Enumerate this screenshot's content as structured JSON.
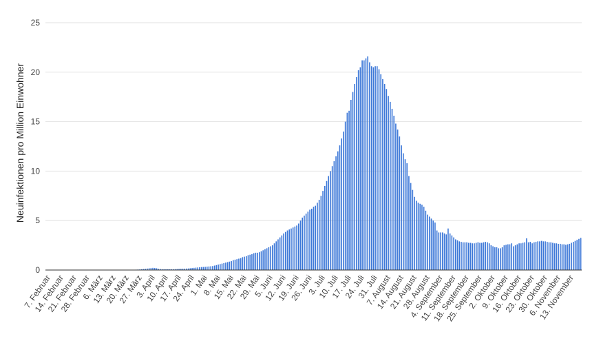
{
  "chart_data": {
    "type": "bar",
    "ylabel": "Neuinfektionen pro Million Einwohner",
    "xlabel": "",
    "ylim": [
      0,
      25
    ],
    "y_ticks": [
      0,
      5,
      10,
      15,
      20,
      25
    ],
    "grid": true,
    "bar_color": "#3d78d8",
    "x_tick_labels": [
      "7. Februar",
      "14. Februar",
      "21. Februar",
      "28. Februar",
      "6. März",
      "13. März",
      "20. März",
      "27. März",
      "3. April",
      "10. April",
      "17. April",
      "24. April",
      "1. Mai",
      "8. Mai",
      "15. Mai",
      "22. Mai",
      "29. Mai",
      "5. Juni",
      "12. Juni",
      "19. Juni",
      "26. Juni",
      "3. Juli",
      "10. Juli",
      "17. Juli",
      "24. Juli",
      "31. Juli",
      "7. August",
      "14. August",
      "21. August",
      "28. August",
      "4. September",
      "11. September",
      "18. September",
      "25. September",
      "2. Oktober",
      "9. Oktober",
      "16. Oktober",
      "23. Oktober",
      "30. Oktober",
      "6. November",
      "13. November"
    ],
    "series": [
      {
        "values": [
          0,
          0,
          0,
          0,
          0,
          0,
          0,
          0,
          0,
          0,
          0,
          0,
          0,
          0,
          0,
          0,
          0,
          0,
          0,
          0,
          0,
          0,
          0,
          0,
          0,
          0,
          0,
          0,
          0,
          0,
          0,
          0,
          0,
          0,
          0,
          0,
          0.01,
          0.01,
          0.01,
          0.01,
          0.01,
          0.01,
          0.01,
          0.02,
          0.02,
          0.02,
          0.03,
          0.03,
          0.04,
          0.05,
          0.06,
          0.08,
          0.1,
          0.12,
          0.15,
          0.18,
          0.2,
          0.22,
          0.2,
          0.18,
          0.12,
          0.1,
          0.08,
          0.08,
          0.07,
          0.07,
          0.07,
          0.08,
          0.08,
          0.09,
          0.1,
          0.11,
          0.12,
          0.13,
          0.14,
          0.15,
          0.16,
          0.18,
          0.2,
          0.22,
          0.24,
          0.26,
          0.28,
          0.3,
          0.31,
          0.32,
          0.34,
          0.36,
          0.38,
          0.4,
          0.45,
          0.5,
          0.55,
          0.6,
          0.65,
          0.7,
          0.75,
          0.8,
          0.85,
          0.9,
          1.0,
          1.05,
          1.1,
          1.15,
          1.2,
          1.3,
          1.35,
          1.4,
          1.5,
          1.55,
          1.6,
          1.7,
          1.75,
          1.75,
          1.8,
          1.9,
          2.0,
          2.1,
          2.2,
          2.3,
          2.4,
          2.5,
          2.7,
          2.9,
          3.1,
          3.3,
          3.5,
          3.7,
          3.85,
          4.0,
          4.1,
          4.2,
          4.3,
          4.4,
          4.5,
          4.7,
          5.0,
          5.3,
          5.5,
          5.7,
          5.9,
          6.1,
          6.2,
          6.4,
          6.5,
          6.8,
          7.1,
          7.5,
          8.0,
          8.5,
          9.0,
          9.5,
          10.0,
          10.5,
          11.0,
          11.5,
          12.0,
          12.6,
          13.3,
          14.0,
          15.0,
          15.9,
          16.1,
          17.2,
          18.0,
          18.8,
          19.5,
          20.2,
          20.5,
          21.2,
          21.2,
          21.4,
          21.6,
          21.0,
          20.6,
          20.5,
          20.6,
          20.6,
          20.3,
          19.8,
          19.3,
          18.8,
          18.3,
          17.6,
          17.0,
          16.3,
          15.6,
          14.8,
          14.2,
          13.5,
          12.6,
          11.8,
          11.2,
          10.8,
          9.5,
          8.8,
          8.1,
          7.4,
          7.0,
          6.8,
          6.7,
          6.6,
          6.4,
          6.0,
          5.6,
          5.4,
          5.2,
          5.0,
          4.8,
          4.0,
          3.8,
          3.8,
          3.8,
          3.7,
          3.6,
          4.2,
          3.7,
          3.5,
          3.3,
          3.1,
          3.0,
          2.9,
          2.85,
          2.8,
          2.8,
          2.8,
          2.75,
          2.75,
          2.7,
          2.7,
          2.75,
          2.8,
          2.75,
          2.75,
          2.8,
          2.85,
          2.8,
          2.7,
          2.5,
          2.4,
          2.3,
          2.3,
          2.2,
          2.2,
          2.3,
          2.5,
          2.55,
          2.6,
          2.6,
          2.7,
          2.4,
          2.5,
          2.6,
          2.7,
          2.7,
          2.75,
          2.8,
          3.2,
          2.8,
          2.85,
          2.7,
          2.8,
          2.85,
          2.9,
          2.9,
          2.95,
          2.9,
          2.9,
          2.85,
          2.8,
          2.8,
          2.75,
          2.7,
          2.7,
          2.65,
          2.65,
          2.6,
          2.6,
          2.55,
          2.6,
          2.65,
          2.75,
          2.85,
          2.95,
          3.05,
          3.15,
          3.25
        ]
      }
    ]
  }
}
